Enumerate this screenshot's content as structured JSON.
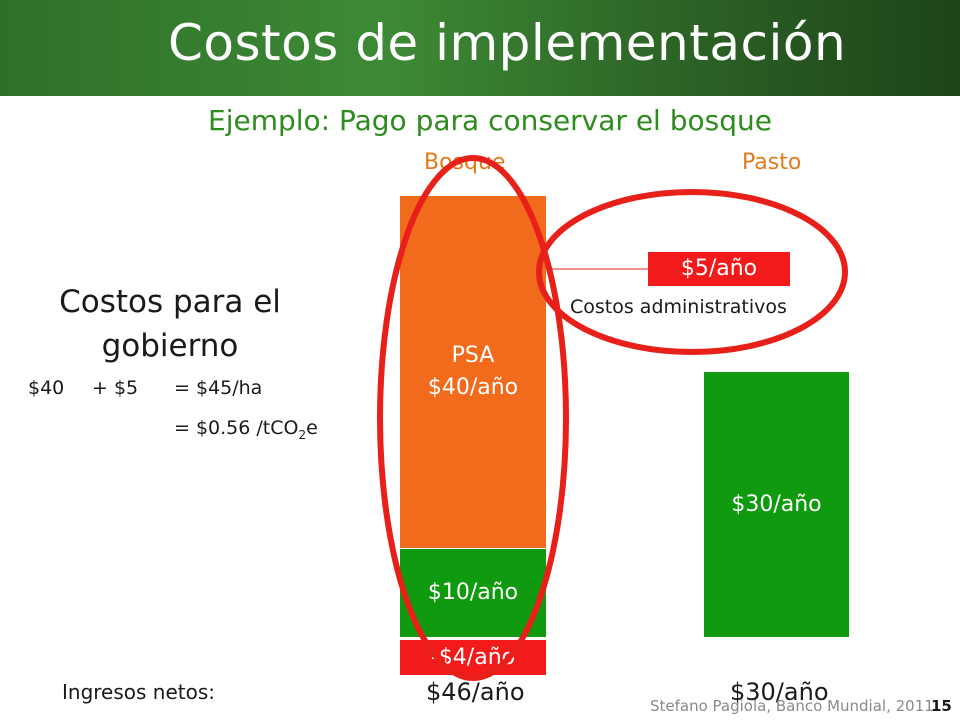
{
  "header": {
    "title": "Costos de implementación"
  },
  "subtitle": "Ejemplo: Pago para conservar el bosque",
  "columns": {
    "forest": "Bosque",
    "pasture": "Pasto"
  },
  "bars": {
    "psa_line1": "PSA",
    "psa_line2": "$40/año",
    "forest_income": "$10/año",
    "forest_negative": "-$4/año",
    "admin_cost": "$5/año",
    "pasture_income": "$30/año"
  },
  "admin_label": "Costos administrativos",
  "government": {
    "heading": "Costos para el gobierno",
    "calc_a": "$40",
    "calc_b": "+ $5",
    "calc_c": "= $45/ha",
    "calc_d_prefix": "= $0.56 /tCO",
    "calc_d_sub": "2",
    "calc_d_suffix": "e"
  },
  "net_income": {
    "label": "Ingresos netos:",
    "forest": "$46/año",
    "pasture": "$30/año"
  },
  "footer": {
    "credit": "Stefano Pagiola, Banco Mundial, 2011",
    "page": "15"
  },
  "colors": {
    "header_green": "#3d8a35",
    "subtitle_green": "#2e8b1e",
    "orange": "#f26a1b",
    "green": "#0f9a0f",
    "red": "#f21a1a",
    "ellipse_red": "#e8201a"
  }
}
